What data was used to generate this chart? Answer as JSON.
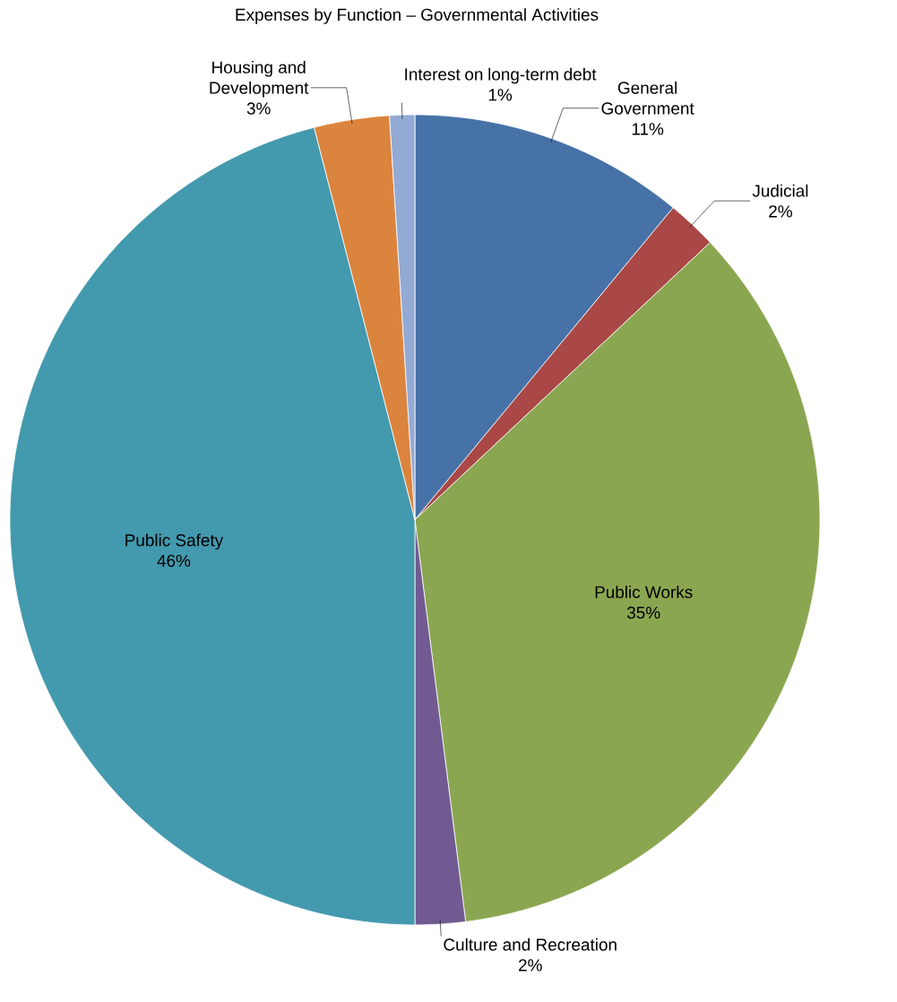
{
  "chart_data": {
    "type": "pie",
    "title": "Expenses by Function – Governmental Activities",
    "categories": [
      "General Government",
      "Judicial",
      "Public Works",
      "Culture and Recreation",
      "Public Safety",
      "Housing and Development",
      "Interest on long-term debt"
    ],
    "values": [
      11,
      2,
      35,
      2,
      46,
      3,
      1
    ],
    "value_labels": [
      "11%",
      "2%",
      "35%",
      "2%",
      "46%",
      "3%",
      "1%"
    ],
    "colors": [
      "#4672a8",
      "#a94846",
      "#8ba650",
      "#715a91",
      "#4399ae",
      "#db843d",
      "#93aad4"
    ]
  }
}
